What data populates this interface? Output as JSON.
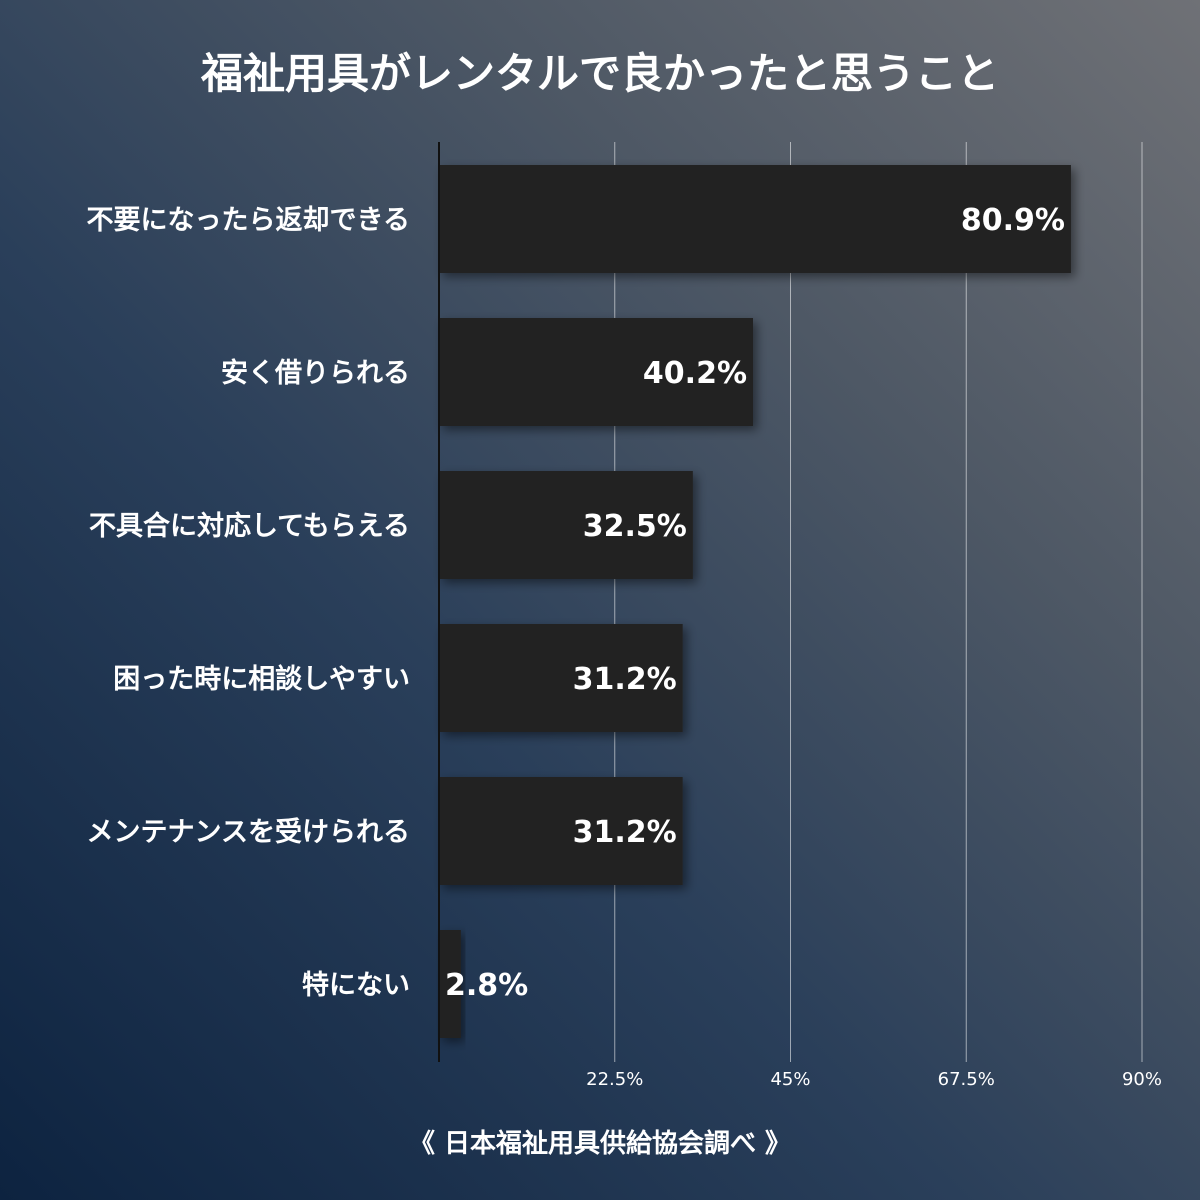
{
  "chart_data": {
    "type": "bar",
    "orientation": "horizontal",
    "title": "福祉用具がレンタルで良かったと思うこと",
    "categories": [
      "不要になったら返却できる",
      "安く借りられる",
      "不具合に対応してもらえる",
      "困った時に相談しやすい",
      "メンテナンスを受けられる",
      "特にない"
    ],
    "values": [
      80.9,
      40.2,
      32.5,
      31.2,
      31.2,
      2.8
    ],
    "value_labels": [
      "80.9%",
      "40.2%",
      "32.5%",
      "31.2%",
      "31.2%",
      "2.8%"
    ],
    "xlim": [
      0,
      90
    ],
    "x_ticks": [
      22.5,
      45,
      67.5,
      90
    ],
    "x_tick_labels": [
      "22.5%",
      "45%",
      "67.5%",
      "90%"
    ],
    "grid": true,
    "bar_color": "#222222",
    "source": "《 日本福祉用具供給協会調べ 》"
  }
}
